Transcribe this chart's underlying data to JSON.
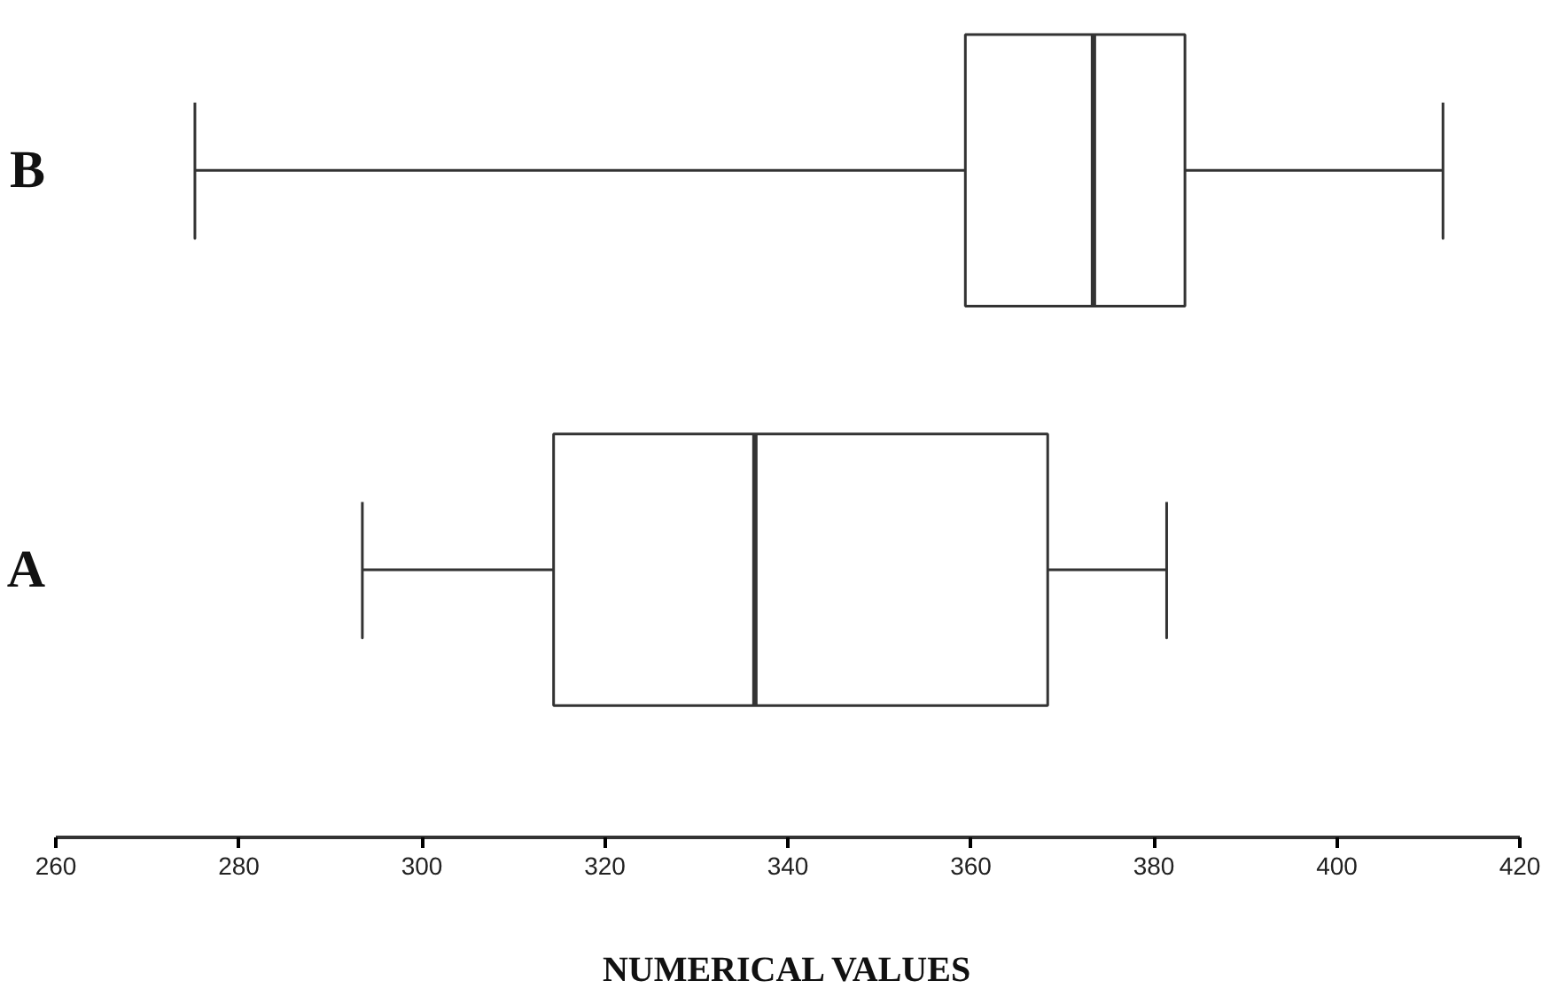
{
  "chart_data": {
    "type": "box",
    "orientation": "horizontal",
    "xlabel": "NUMERICAL VALUES",
    "categories": [
      "B",
      "A"
    ],
    "boxes": [
      {
        "low": 275.2,
        "q1": 359.4,
        "median": 373.4,
        "q3": 383.4,
        "high": 411.6
      },
      {
        "low": 293.5,
        "q1": 314.4,
        "median": 336.4,
        "q3": 368.4,
        "high": 381.4
      }
    ],
    "xlim": [
      260,
      420
    ],
    "xticks": [
      260,
      280,
      300,
      320,
      340,
      360,
      380,
      400,
      420
    ],
    "grid": false
  }
}
